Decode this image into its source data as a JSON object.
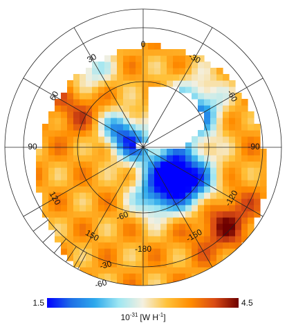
{
  "chart_data": {
    "type": "heatmap",
    "projection": "polar (orthographic view)",
    "grid": true,
    "longitude_tick_labels": [
      "0",
      "30",
      "60",
      "90",
      "120",
      "150",
      "-180",
      "-150",
      "-120",
      "-90",
      "-60",
      "-30"
    ],
    "latitude_tick_labels": [
      "60",
      "30",
      "0",
      "-30",
      "-60"
    ],
    "colorbar": {
      "min_label": "1.5",
      "max_label": "4.5",
      "range": [
        1.5,
        4.5
      ],
      "label_base": "10",
      "label_exponent": "-31",
      "label_unit": "[W H",
      "label_unit_exponent": "-1",
      "label_close": "]",
      "colors": [
        "#0000ff",
        "#1e6fe6",
        "#2ea9ec",
        "#9ee6f2",
        "#f4f0e0",
        "#ffc23a",
        "#ff8c00",
        "#d94a14",
        "#6e0000"
      ]
    },
    "value_zones": [
      {
        "region": "north polar gap",
        "value": null
      },
      {
        "region": "blue band lon 60-120 near equator",
        "value": 2.1
      },
      {
        "region": "blue patch lon -60 to -120",
        "value": 1.7
      },
      {
        "region": "orange-red outer ring",
        "value": 3.9
      },
      {
        "region": "red patch lon -120 to -150",
        "value": 4.3
      }
    ]
  }
}
